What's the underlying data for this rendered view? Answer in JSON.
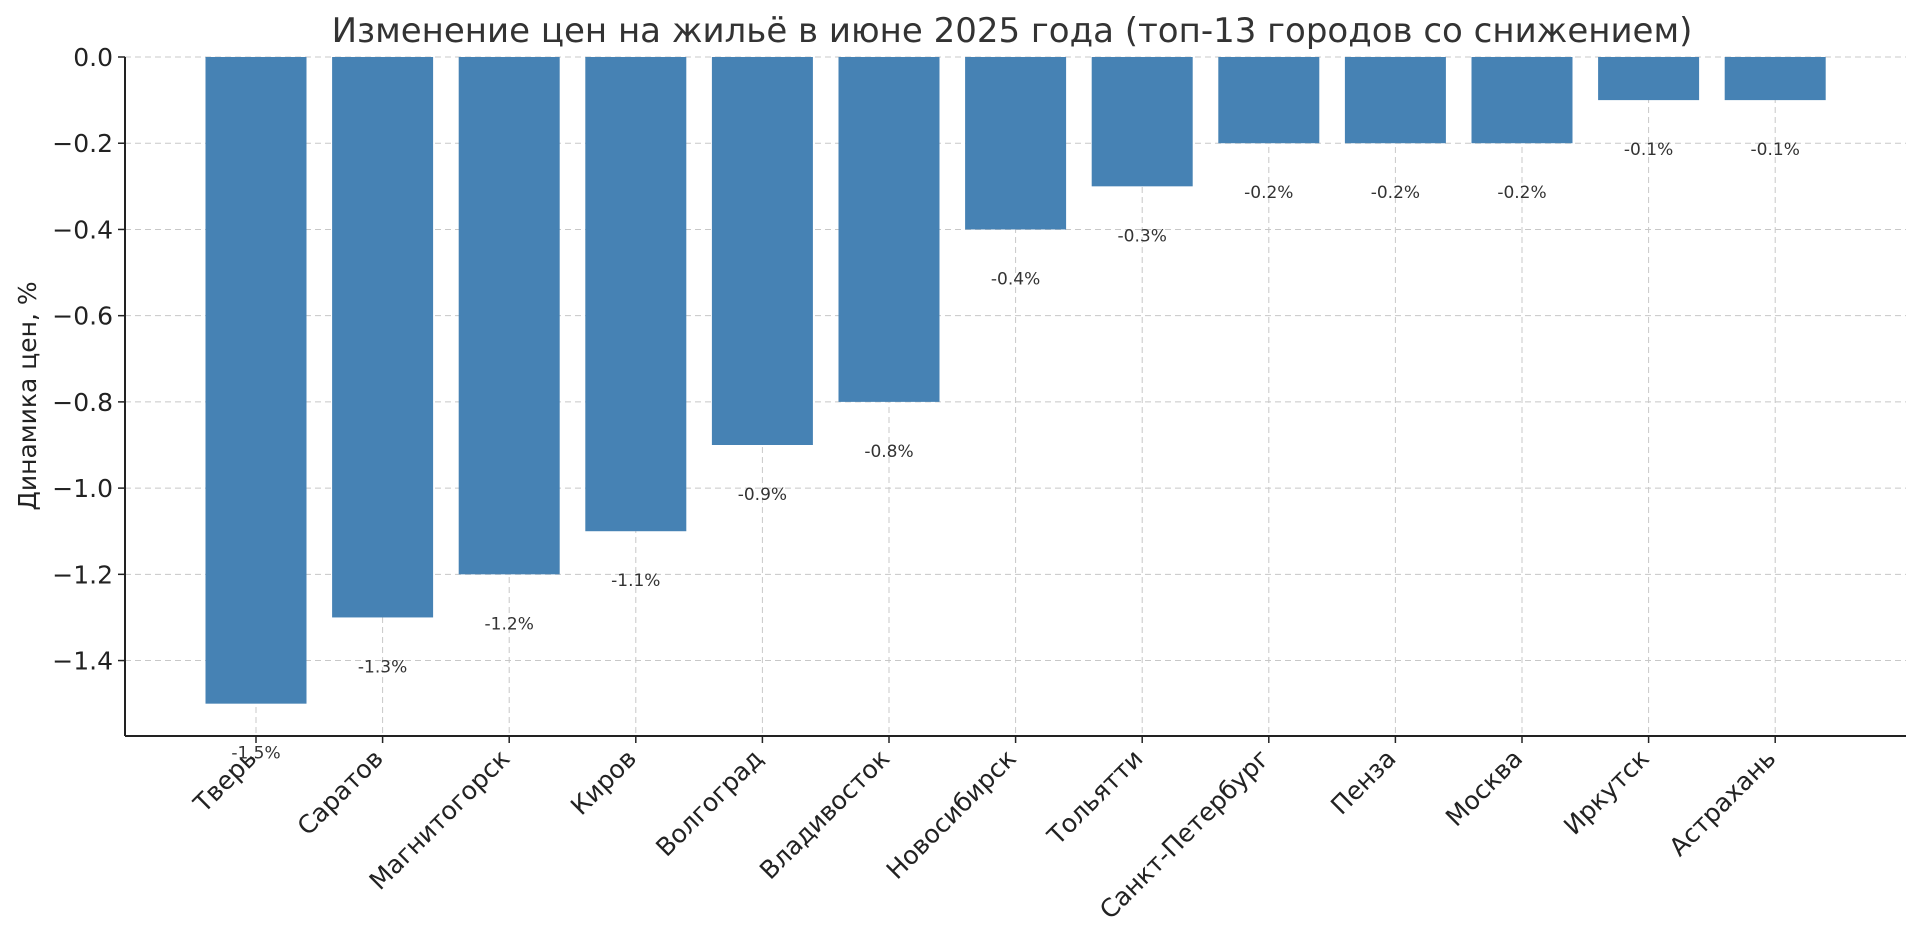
{
  "chart_data": {
    "type": "bar",
    "title": "Изменение цен на жильё в июне 2025 года (топ-13 городов со снижением)",
    "xlabel": "",
    "ylabel": "Динамика цен, %",
    "categories": [
      "Тверь",
      "Саратов",
      "Магнитогорск",
      "Киров",
      "Волгоград",
      "Владивосток",
      "Новосибирск",
      "Тольятти",
      "Санкт-Петербург",
      "Пенза",
      "Москва",
      "Иркутск",
      "Астрахань"
    ],
    "values": [
      -1.5,
      -1.3,
      -1.2,
      -1.1,
      -0.9,
      -0.8,
      -0.4,
      -0.3,
      -0.2,
      -0.2,
      -0.2,
      -0.1,
      -0.1
    ],
    "data_labels": [
      "-1.5%",
      "-1.3%",
      "-1.2%",
      "-1.1%",
      "-0.9%",
      "-0.8%",
      "-0.4%",
      "-0.3%",
      "-0.2%",
      "-0.2%",
      "-0.2%",
      "-0.1%",
      "-0.1%"
    ],
    "ylim": [
      -1.575,
      0.0
    ],
    "yticks": [
      0.0,
      -0.2,
      -0.4,
      -0.6,
      -0.8,
      -1.0,
      -1.2,
      -1.4
    ],
    "ytick_labels": [
      "0.0",
      "−0.2",
      "−0.4",
      "−0.6",
      "−0.8",
      "−1.0",
      "−1.2",
      "−1.4"
    ],
    "grid": true,
    "bar_color": "#4682b4"
  }
}
